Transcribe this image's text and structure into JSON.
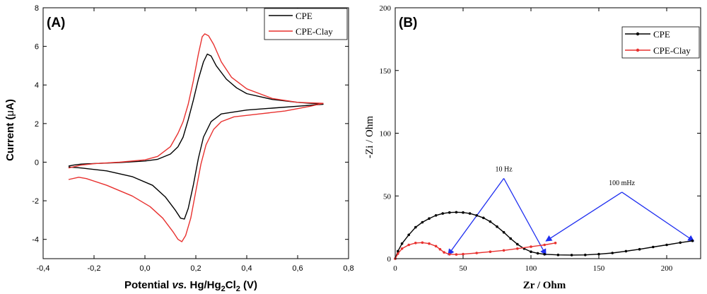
{
  "chart_data": [
    {
      "type": "line",
      "panel_label": "(A)",
      "xlabel": "Potential vs. Hg/Hg2Cl2 (V)",
      "xlabel_parts": [
        "Potential ",
        "vs.",
        " Hg/Hg",
        "2",
        "Cl",
        "2",
        " (V)"
      ],
      "ylabel": "Current (μA)",
      "ylabel_parts": [
        "Current (",
        "μ",
        "A)"
      ],
      "xlim": [
        -0.4,
        0.8
      ],
      "ylim": [
        -5,
        8
      ],
      "xticks": [
        -0.4,
        -0.2,
        0.0,
        0.2,
        0.4,
        0.6,
        0.8
      ],
      "xtick_labels": [
        "-0,4",
        "-0,2",
        "0,0",
        "0,2",
        "0,4",
        "0,6",
        "0,8"
      ],
      "yticks": [
        -4,
        -2,
        0,
        2,
        4,
        6,
        8
      ],
      "ytick_labels": [
        "-4",
        "-2",
        "0",
        "2",
        "4",
        "6",
        "8"
      ],
      "grid": false,
      "legend_position": "top-right",
      "series": [
        {
          "name": "CPE",
          "color": "#000000",
          "points": [
            [
              -0.3,
              -0.2
            ],
            [
              -0.28,
              -0.15
            ],
            [
              -0.25,
              -0.1
            ],
            [
              -0.2,
              -0.07
            ],
            [
              -0.1,
              -0.02
            ],
            [
              0.0,
              0.06
            ],
            [
              0.05,
              0.15
            ],
            [
              0.1,
              0.42
            ],
            [
              0.13,
              0.8
            ],
            [
              0.15,
              1.3
            ],
            [
              0.17,
              2.2
            ],
            [
              0.19,
              3.2
            ],
            [
              0.21,
              4.3
            ],
            [
              0.23,
              5.2
            ],
            [
              0.245,
              5.6
            ],
            [
              0.26,
              5.5
            ],
            [
              0.28,
              5.0
            ],
            [
              0.32,
              4.3
            ],
            [
              0.36,
              3.85
            ],
            [
              0.4,
              3.55
            ],
            [
              0.5,
              3.25
            ],
            [
              0.6,
              3.1
            ],
            [
              0.7,
              3.0
            ],
            [
              0.65,
              2.95
            ],
            [
              0.5,
              2.8
            ],
            [
              0.4,
              2.7
            ],
            [
              0.3,
              2.5
            ],
            [
              0.26,
              2.1
            ],
            [
              0.23,
              1.3
            ],
            [
              0.21,
              0.2
            ],
            [
              0.19,
              -1.2
            ],
            [
              0.17,
              -2.4
            ],
            [
              0.155,
              -2.95
            ],
            [
              0.14,
              -2.9
            ],
            [
              0.12,
              -2.5
            ],
            [
              0.08,
              -1.8
            ],
            [
              0.03,
              -1.2
            ],
            [
              -0.05,
              -0.75
            ],
            [
              -0.15,
              -0.45
            ],
            [
              -0.25,
              -0.3
            ],
            [
              -0.3,
              -0.25
            ]
          ]
        },
        {
          "name": "CPE-Clay",
          "color": "#e8312f",
          "points": [
            [
              -0.3,
              -0.3
            ],
            [
              -0.25,
              -0.15
            ],
            [
              -0.2,
              -0.08
            ],
            [
              -0.1,
              0.0
            ],
            [
              0.0,
              0.12
            ],
            [
              0.05,
              0.3
            ],
            [
              0.1,
              0.8
            ],
            [
              0.13,
              1.5
            ],
            [
              0.15,
              2.1
            ],
            [
              0.17,
              3.0
            ],
            [
              0.19,
              4.2
            ],
            [
              0.21,
              5.6
            ],
            [
              0.225,
              6.5
            ],
            [
              0.235,
              6.65
            ],
            [
              0.25,
              6.55
            ],
            [
              0.27,
              6.1
            ],
            [
              0.3,
              5.2
            ],
            [
              0.34,
              4.4
            ],
            [
              0.4,
              3.8
            ],
            [
              0.5,
              3.3
            ],
            [
              0.6,
              3.1
            ],
            [
              0.7,
              3.05
            ],
            [
              0.65,
              2.9
            ],
            [
              0.55,
              2.65
            ],
            [
              0.45,
              2.5
            ],
            [
              0.35,
              2.35
            ],
            [
              0.3,
              2.1
            ],
            [
              0.27,
              1.7
            ],
            [
              0.24,
              0.9
            ],
            [
              0.22,
              -0.1
            ],
            [
              0.2,
              -1.5
            ],
            [
              0.18,
              -2.9
            ],
            [
              0.16,
              -3.8
            ],
            [
              0.145,
              -4.12
            ],
            [
              0.13,
              -4.0
            ],
            [
              0.11,
              -3.6
            ],
            [
              0.07,
              -2.9
            ],
            [
              0.02,
              -2.3
            ],
            [
              -0.05,
              -1.75
            ],
            [
              -0.15,
              -1.2
            ],
            [
              -0.23,
              -0.85
            ],
            [
              -0.26,
              -0.78
            ],
            [
              -0.3,
              -0.9
            ]
          ]
        }
      ]
    },
    {
      "type": "line",
      "panel_label": "(B)",
      "xlabel": "Zr / Ohm",
      "ylabel": "-Zi / Ohm",
      "xlim": [
        0,
        225
      ],
      "ylim": [
        0,
        200
      ],
      "xticks": [
        0,
        50,
        100,
        150,
        200
      ],
      "xtick_labels": [
        "0",
        "50",
        "100",
        "150",
        "200"
      ],
      "yticks": [
        0,
        50,
        100,
        150,
        200
      ],
      "ytick_labels": [
        "0",
        "50",
        "100",
        "150",
        "200"
      ],
      "grid": false,
      "legend_position": "top-right",
      "series": [
        {
          "name": "CPE",
          "color": "#000000",
          "points": [
            [
              0,
              0
            ],
            [
              2,
              6
            ],
            [
              5,
              12
            ],
            [
              10,
              19
            ],
            [
              15,
              25
            ],
            [
              20,
              29
            ],
            [
              25,
              32
            ],
            [
              30,
              34.5
            ],
            [
              35,
              36
            ],
            [
              40,
              36.8
            ],
            [
              45,
              37
            ],
            [
              50,
              36.8
            ],
            [
              55,
              36
            ],
            [
              60,
              34.5
            ],
            [
              65,
              32.5
            ],
            [
              70,
              29.5
            ],
            [
              75,
              25.5
            ],
            [
              80,
              21
            ],
            [
              85,
              16
            ],
            [
              90,
              11.5
            ],
            [
              95,
              8
            ],
            [
              100,
              5.5
            ],
            [
              105,
              4.3
            ],
            [
              110,
              3.5
            ],
            [
              120,
              3.0
            ],
            [
              130,
              2.9
            ],
            [
              140,
              3.0
            ],
            [
              150,
              3.6
            ],
            [
              160,
              4.5
            ],
            [
              170,
              6
            ],
            [
              180,
              7.5
            ],
            [
              190,
              9.3
            ],
            [
              200,
              11
            ],
            [
              210,
              12.8
            ],
            [
              219,
              14.2
            ]
          ]
        },
        {
          "name": "CPE-Clay",
          "color": "#e8312f",
          "points": [
            [
              0,
              0
            ],
            [
              2,
              4
            ],
            [
              5,
              8
            ],
            [
              10,
              11
            ],
            [
              15,
              12.5
            ],
            [
              20,
              12.8
            ],
            [
              25,
              12
            ],
            [
              30,
              10
            ],
            [
              33,
              7.5
            ],
            [
              36,
              5
            ],
            [
              40,
              3.5
            ],
            [
              45,
              3.3
            ],
            [
              50,
              3.6
            ],
            [
              60,
              4.5
            ],
            [
              70,
              5.5
            ],
            [
              80,
              6.6
            ],
            [
              90,
              8
            ],
            [
              100,
              9.5
            ],
            [
              110,
              11
            ],
            [
              118,
              12.5
            ]
          ]
        }
      ],
      "annotations": [
        {
          "text": "10 Hz",
          "color": "#1f2ff0",
          "apex": [
            80,
            64
          ],
          "targets": [
            [
              39,
              3
            ],
            [
              111,
              3
            ]
          ]
        },
        {
          "text": "100 mHz",
          "color": "#1f2ff0",
          "apex": [
            167,
            53
          ],
          "targets": [
            [
              111,
              14
            ],
            [
              220,
              14
            ]
          ]
        }
      ]
    }
  ]
}
